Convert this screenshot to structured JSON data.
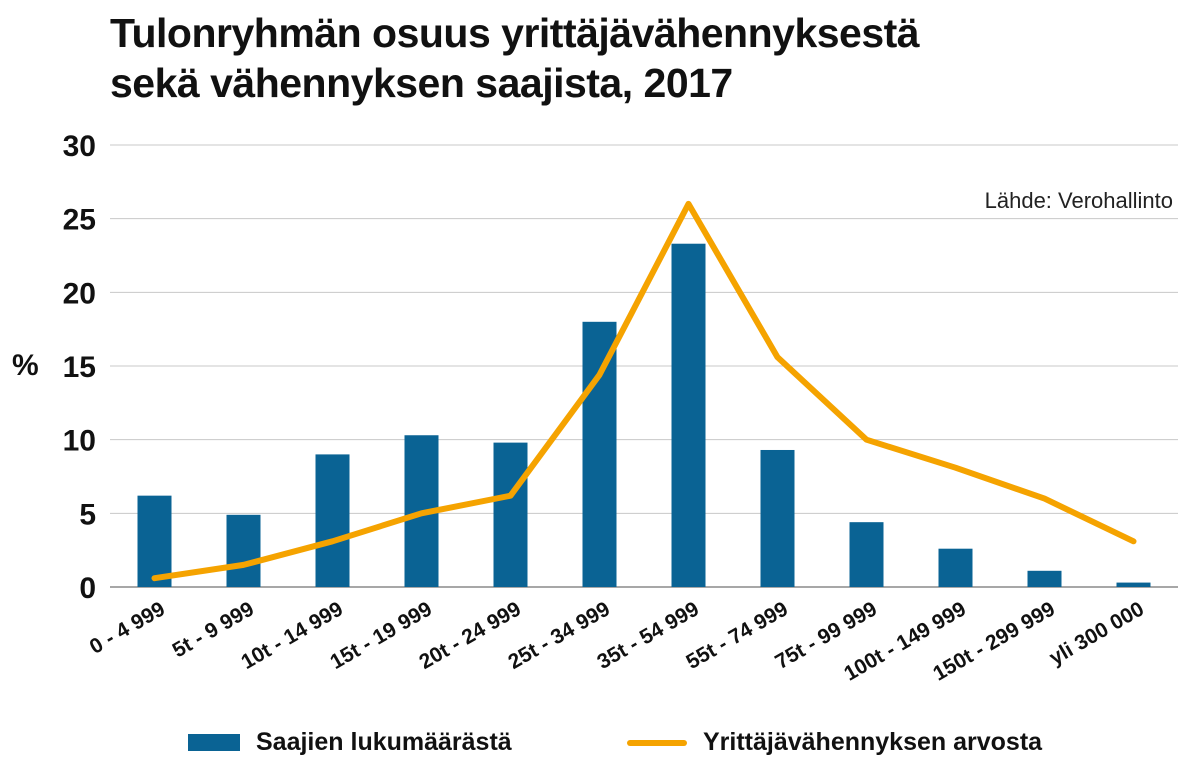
{
  "chart_data": {
    "type": "bar",
    "title": [
      "Tulonryhmän osuus yrittäjävähennyksestä",
      "sekä vähennyksen saajista, 2017"
    ],
    "ylabel": "%",
    "xlabel": "",
    "ylim": [
      0,
      30
    ],
    "yticks": [
      0,
      5,
      10,
      15,
      20,
      25,
      30
    ],
    "grid": true,
    "legend_position": "bottom",
    "annotation": "Lähde: Verohallinto",
    "categories": [
      "0 - 4 999",
      "5t - 9 999",
      "10t - 14 999",
      "15t - 19 999",
      "20t - 24 999",
      "25t - 34 999",
      "35t - 54 999",
      "55t - 74 999",
      "75t - 99 999",
      "100t - 149 999",
      "150t - 299 999",
      "yli 300 000"
    ],
    "series": [
      {
        "name": "Saajien lukumäärästä",
        "type": "bar",
        "color": "#0a6394",
        "values": [
          6.2,
          4.9,
          9.0,
          10.3,
          9.8,
          18.0,
          23.3,
          9.3,
          4.4,
          2.6,
          1.1,
          0.3
        ]
      },
      {
        "name": "Yrittäjävähennyksen arvosta",
        "type": "line",
        "color": "#f5a300",
        "values": [
          0.6,
          1.5,
          3.1,
          5.0,
          6.2,
          14.4,
          26.0,
          15.6,
          10.0,
          8.1,
          6.0,
          3.1
        ]
      }
    ]
  }
}
